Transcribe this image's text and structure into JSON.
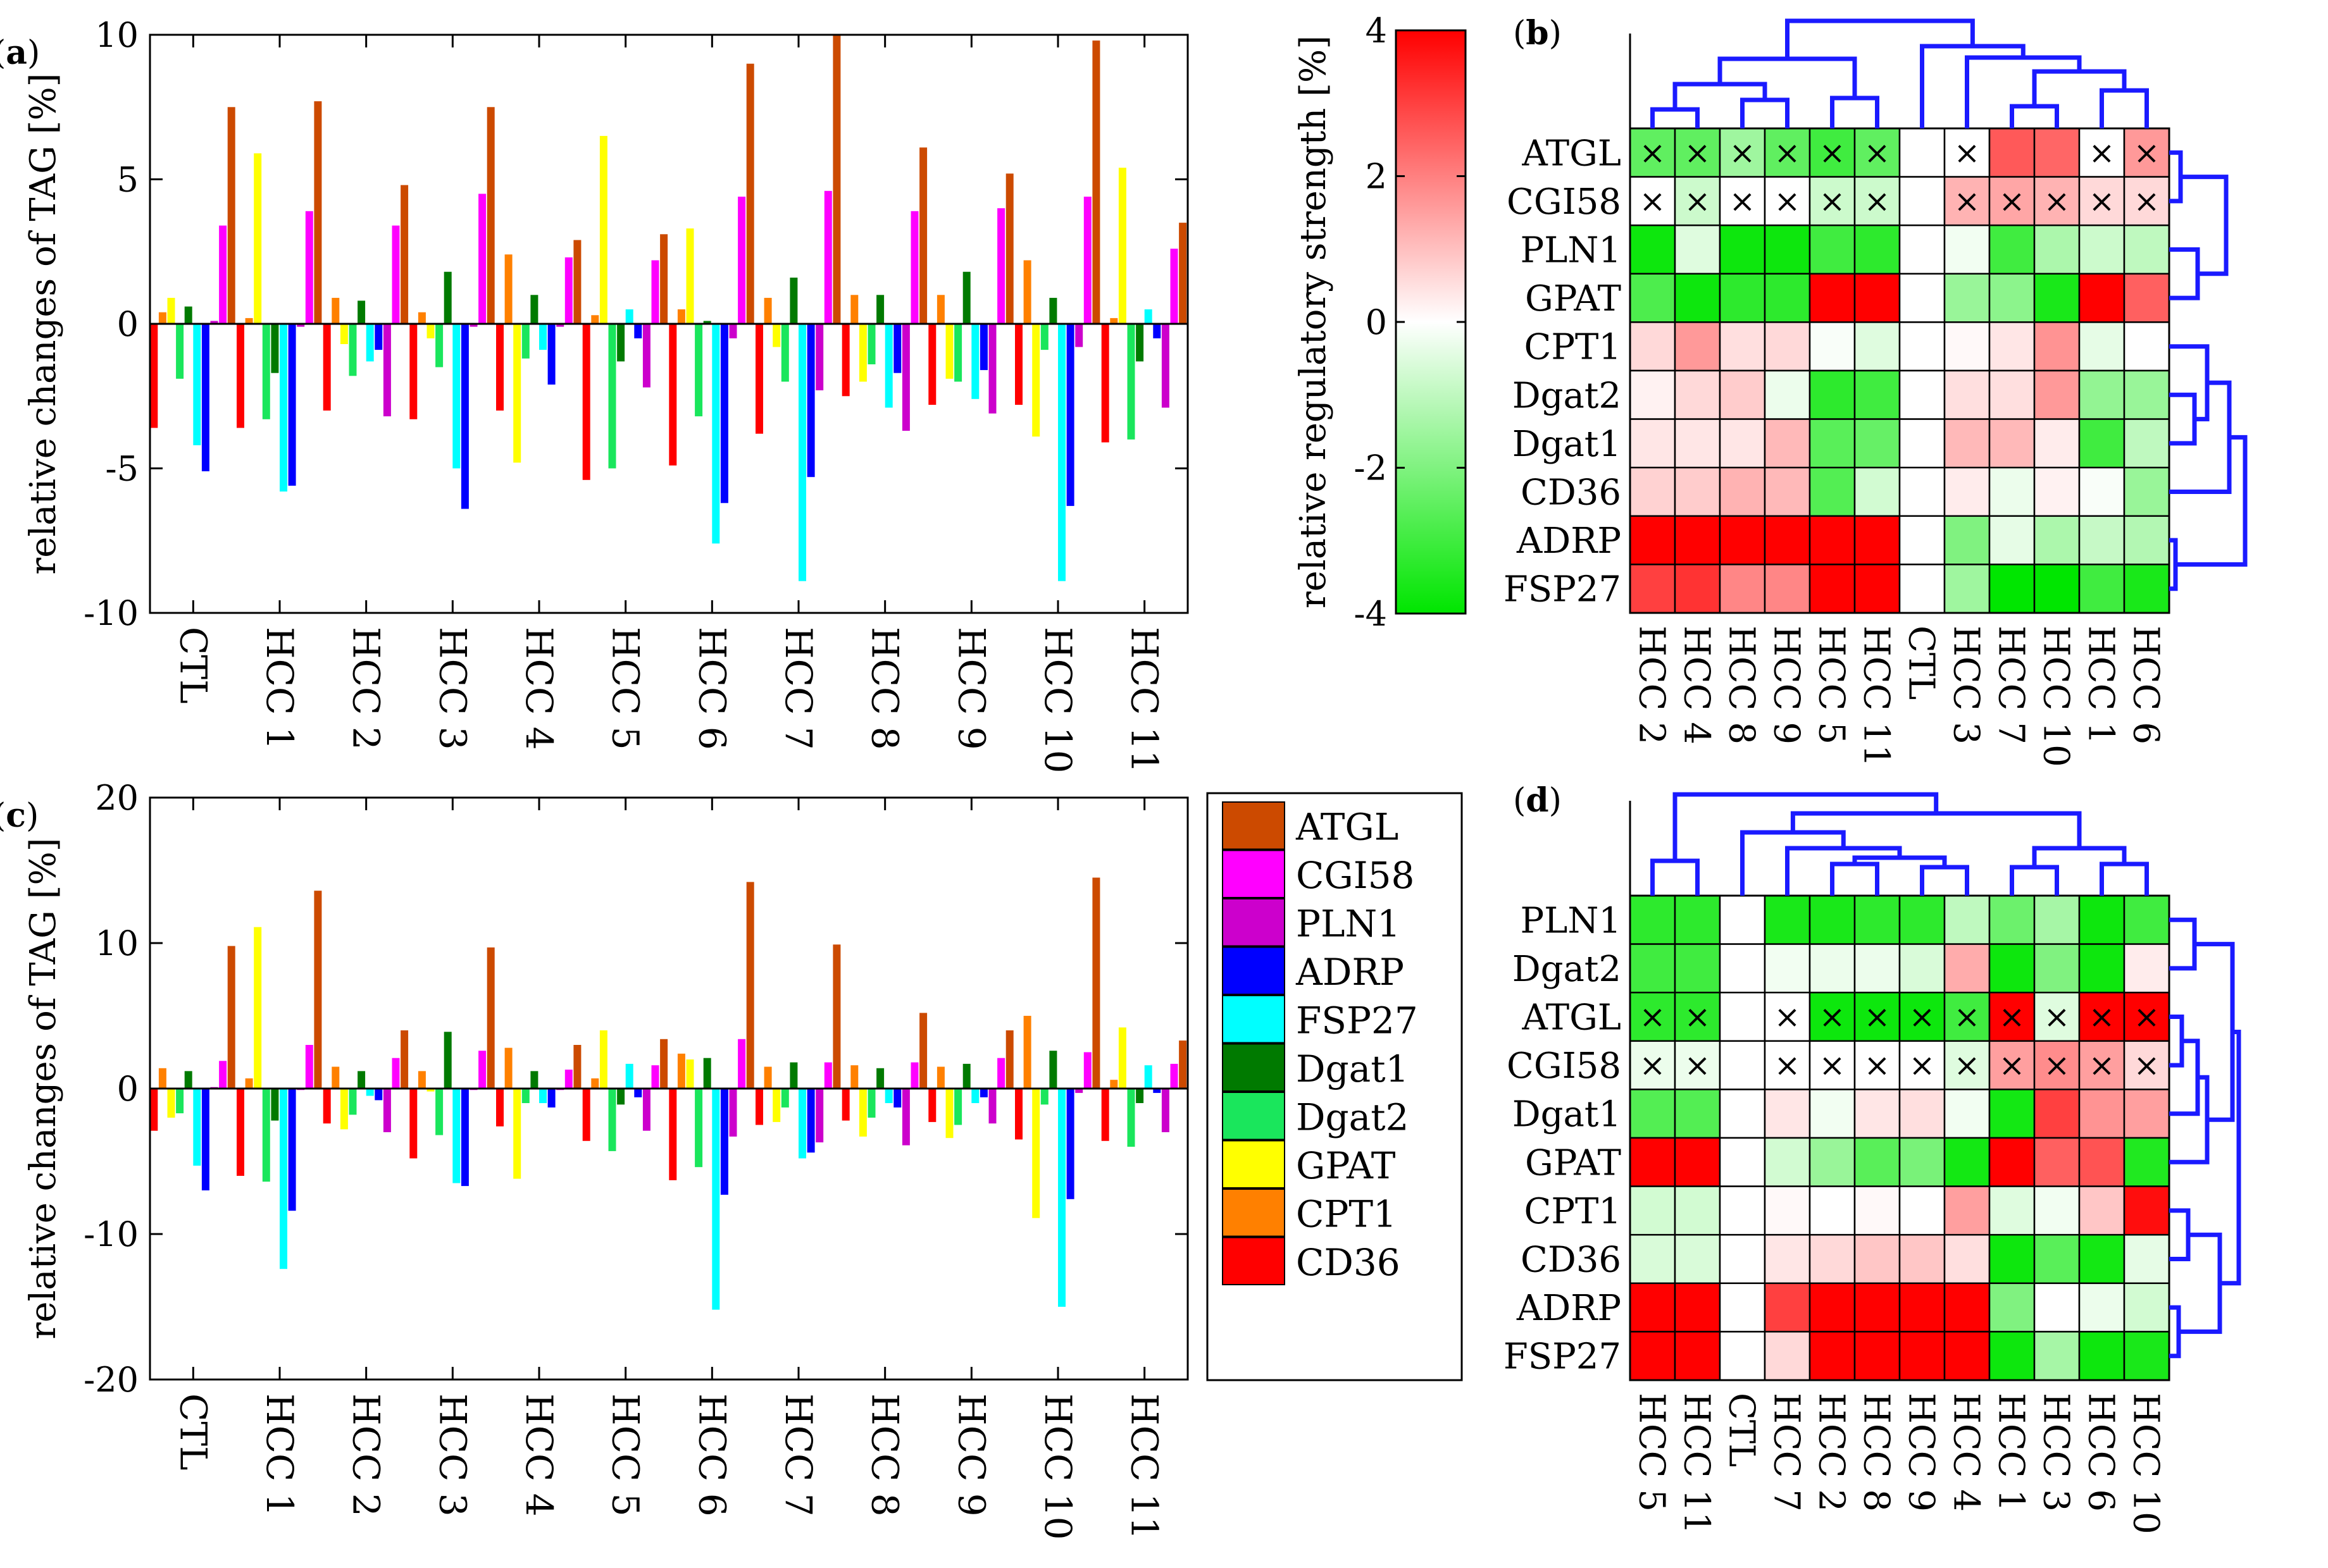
{
  "series_colors": {
    "CD36": "#ff0000",
    "CPT1": "#ff8000",
    "GPAT": "#ffff00",
    "Dgat2": "#1ae65c",
    "Dgat1": "#007a00",
    "FSP27": "#00ffff",
    "ADRP": "#0000ff",
    "PLN1": "#cc00cc",
    "CGI58": "#ff00ff",
    "ATGL": "#cc4a00"
  },
  "legend": {
    "items": [
      "ATGL",
      "CGI58",
      "PLN1",
      "ADRP",
      "FSP27",
      "Dgat1",
      "Dgat2",
      "GPAT",
      "CPT1",
      "CD36"
    ]
  },
  "colorbar": {
    "label": "relative regulatory strength [%]",
    "ticks": [
      "4",
      "2",
      "0",
      "-2",
      "-4"
    ],
    "range": [
      -4,
      4
    ]
  },
  "chart_data": [
    {
      "panel": "(a)",
      "type": "bar",
      "ylabel": "relative changes of TAG [%]",
      "ylim": [
        -10,
        10
      ],
      "yticks": [
        "10",
        "5",
        "0",
        "-5",
        "-10"
      ],
      "categories": [
        "CTL",
        "HCC 1",
        "HCC 2",
        "HCC 3",
        "HCC 4",
        "HCC 5",
        "HCC 6",
        "HCC 7",
        "HCC 8",
        "HCC 9",
        "HCC 10",
        "HCC 11"
      ],
      "series_order": [
        "CD36",
        "CPT1",
        "GPAT",
        "Dgat2",
        "Dgat1",
        "FSP27",
        "ADRP",
        "PLN1",
        "CGI58",
        "ATGL"
      ],
      "series": [
        {
          "name": "CD36",
          "values": [
            -3.6,
            -3.6,
            -3.0,
            -3.3,
            -3.0,
            -5.4,
            -4.9,
            -3.8,
            -2.5,
            -2.8,
            -2.8,
            -4.1
          ]
        },
        {
          "name": "CPT1",
          "values": [
            0.4,
            0.2,
            0.9,
            0.4,
            2.4,
            0.3,
            0.5,
            0.9,
            1.0,
            1.0,
            2.2,
            0.2
          ]
        },
        {
          "name": "GPAT",
          "values": [
            0.9,
            5.9,
            -0.7,
            -0.5,
            -4.8,
            6.5,
            3.3,
            -0.8,
            -2.0,
            -1.9,
            -3.9,
            5.4
          ]
        },
        {
          "name": "Dgat2",
          "values": [
            -1.9,
            -3.3,
            -1.8,
            -1.5,
            -1.2,
            -5.0,
            -3.2,
            -2.0,
            -1.4,
            -2.0,
            -0.9,
            -4.0
          ]
        },
        {
          "name": "Dgat1",
          "values": [
            0.6,
            -1.7,
            0.8,
            1.8,
            1.0,
            -1.3,
            0.1,
            1.6,
            1.0,
            1.8,
            0.9,
            -1.3
          ]
        },
        {
          "name": "FSP27",
          "values": [
            -4.2,
            -5.8,
            -1.3,
            -5.0,
            -0.9,
            0.5,
            -7.6,
            -8.9,
            -2.9,
            -2.6,
            -8.9,
            0.5
          ]
        },
        {
          "name": "ADRP",
          "values": [
            -5.1,
            -5.6,
            -0.9,
            -6.4,
            -2.1,
            -0.5,
            -6.2,
            -5.3,
            -1.7,
            -1.6,
            -6.3,
            -0.5
          ]
        },
        {
          "name": "PLN1",
          "values": [
            0.1,
            -0.1,
            -3.2,
            -0.1,
            -0.1,
            -2.2,
            -0.5,
            -2.3,
            -3.7,
            -3.1,
            -0.8,
            -2.9
          ]
        },
        {
          "name": "CGI58",
          "values": [
            3.4,
            3.9,
            3.4,
            4.5,
            2.3,
            2.2,
            4.4,
            4.6,
            3.9,
            4.0,
            4.4,
            2.6
          ]
        },
        {
          "name": "ATGL",
          "values": [
            7.5,
            7.7,
            4.8,
            7.5,
            2.9,
            3.1,
            9.0,
            10.0,
            6.1,
            5.2,
            9.8,
            3.5
          ]
        }
      ]
    },
    {
      "panel": "(b)",
      "type": "heatmap",
      "rows": [
        "ATGL",
        "CGI58",
        "PLN1",
        "GPAT",
        "CPT1",
        "Dgat2",
        "Dgat1",
        "CD36",
        "ADRP",
        "FSP27"
      ],
      "columns": [
        "HCC 2",
        "HCC 4",
        "HCC 8",
        "HCC 9",
        "HCC 5",
        "HCC 11",
        "CTL",
        "HCC 3",
        "HCC 7",
        "HCC 10",
        "HCC 1",
        "HCC 6"
      ],
      "zlim": [
        -4,
        4
      ],
      "values": [
        [
          -2.5,
          -2.5,
          -1.5,
          -2.5,
          -3.0,
          -2.5,
          0,
          0,
          2.6,
          2.4,
          0,
          1.6
        ],
        [
          0,
          -0.8,
          0,
          0,
          -0.8,
          -0.8,
          0,
          1.2,
          1.4,
          1.2,
          0.6,
          0.6
        ],
        [
          -3.8,
          -0.5,
          -3.8,
          -3.8,
          -3.0,
          -3.3,
          0,
          -0.2,
          -3.0,
          -1.3,
          -0.8,
          -1.0
        ],
        [
          -2.8,
          -3.8,
          -3.3,
          -3.3,
          4.0,
          4.0,
          0,
          -1.6,
          -1.8,
          -3.6,
          4.0,
          2.5
        ],
        [
          0.6,
          1.6,
          0.5,
          0.6,
          -0.1,
          -0.5,
          0,
          0.1,
          0.4,
          1.7,
          -0.4,
          0
        ],
        [
          0.2,
          0.6,
          0.8,
          -0.3,
          -3.3,
          -3.0,
          0,
          0.5,
          0.5,
          1.6,
          -1.7,
          -1.6
        ],
        [
          0.4,
          0.4,
          0.4,
          1.1,
          -2.6,
          -2.4,
          0,
          1.1,
          1.1,
          0.3,
          -3.0,
          -1.0
        ],
        [
          0.7,
          0.8,
          1.2,
          1.1,
          -2.7,
          -0.7,
          0,
          0.3,
          -0.3,
          0.2,
          -0.1,
          -1.6
        ],
        [
          4.0,
          4.0,
          4.0,
          4.0,
          4.0,
          4.0,
          0,
          -2.0,
          -0.4,
          -1.3,
          -0.9,
          -1.2
        ],
        [
          3.0,
          3.2,
          1.9,
          1.9,
          4.0,
          4.0,
          0,
          -1.5,
          -4.0,
          -4.0,
          -3.0,
          -3.6
        ]
      ],
      "crosses": [
        [
          1,
          1,
          1,
          1,
          1,
          1,
          0,
          1,
          0,
          0,
          1,
          1
        ],
        [
          1,
          1,
          1,
          1,
          1,
          1,
          0,
          1,
          1,
          1,
          1,
          1
        ],
        [
          0,
          0,
          0,
          0,
          0,
          0,
          0,
          0,
          0,
          0,
          0,
          0
        ],
        [
          0,
          0,
          0,
          0,
          0,
          0,
          0,
          0,
          0,
          0,
          0,
          0
        ],
        [
          0,
          0,
          0,
          0,
          0,
          0,
          0,
          0,
          0,
          0,
          0,
          0
        ],
        [
          0,
          0,
          0,
          0,
          0,
          0,
          0,
          0,
          0,
          0,
          0,
          0
        ],
        [
          0,
          0,
          0,
          0,
          0,
          0,
          0,
          0,
          0,
          0,
          0,
          0
        ],
        [
          0,
          0,
          0,
          0,
          0,
          0,
          0,
          0,
          0,
          0,
          0,
          0
        ],
        [
          0,
          0,
          0,
          0,
          0,
          0,
          0,
          0,
          0,
          0,
          0,
          0
        ],
        [
          0,
          0,
          0,
          0,
          0,
          0,
          0,
          0,
          0,
          0,
          0,
          0
        ]
      ],
      "cross_symbol": "×"
    },
    {
      "panel": "(c)",
      "type": "bar",
      "ylabel": "relative changes of TAG [%]",
      "ylim": [
        -20,
        20
      ],
      "yticks": [
        "20",
        "10",
        "0",
        "-10",
        "-20"
      ],
      "categories": [
        "CTL",
        "HCC 1",
        "HCC 2",
        "HCC 3",
        "HCC 4",
        "HCC 5",
        "HCC 6",
        "HCC 7",
        "HCC 8",
        "HCC 9",
        "HCC 10",
        "HCC 11"
      ],
      "series_order": [
        "CD36",
        "CPT1",
        "GPAT",
        "Dgat2",
        "Dgat1",
        "FSP27",
        "ADRP",
        "PLN1",
        "CGI58",
        "ATGL"
      ],
      "series": [
        {
          "name": "CD36",
          "values": [
            -2.9,
            -6.0,
            -2.4,
            -4.8,
            -2.6,
            -3.6,
            -6.3,
            -2.5,
            -2.2,
            -2.3,
            -3.5,
            -3.6
          ]
        },
        {
          "name": "CPT1",
          "values": [
            1.4,
            0.7,
            1.5,
            1.2,
            2.8,
            0.7,
            2.4,
            1.5,
            1.6,
            1.5,
            5.0,
            0.6
          ]
        },
        {
          "name": "GPAT",
          "values": [
            -2.0,
            11.1,
            -2.8,
            -0.2,
            -6.2,
            4.0,
            2.0,
            -2.3,
            -3.3,
            -3.4,
            -8.9,
            4.2
          ]
        },
        {
          "name": "Dgat2",
          "values": [
            -1.7,
            -6.4,
            -1.8,
            -3.2,
            -1.0,
            -4.3,
            -5.4,
            -1.3,
            -2.0,
            -2.5,
            -1.1,
            -4.0
          ]
        },
        {
          "name": "Dgat1",
          "values": [
            1.2,
            -2.2,
            1.2,
            3.9,
            1.2,
            -1.1,
            2.1,
            1.8,
            1.4,
            1.7,
            2.6,
            -1.0
          ]
        },
        {
          "name": "FSP27",
          "values": [
            -5.3,
            -12.4,
            -0.5,
            -6.5,
            -1.0,
            1.7,
            -15.2,
            -4.8,
            -1.0,
            -1.0,
            -15.0,
            1.6
          ]
        },
        {
          "name": "ADRP",
          "values": [
            -7.0,
            -8.4,
            -0.8,
            -6.7,
            -1.3,
            -0.6,
            -7.3,
            -4.4,
            -1.3,
            -0.6,
            -7.6,
            -0.3
          ]
        },
        {
          "name": "PLN1",
          "values": [
            0.1,
            -0.1,
            -3.0,
            -0.1,
            -0.1,
            -2.9,
            -3.3,
            -3.7,
            -3.9,
            -2.4,
            -0.3,
            -3.0
          ]
        },
        {
          "name": "CGI58",
          "values": [
            1.9,
            3.0,
            2.1,
            2.6,
            1.3,
            1.6,
            3.4,
            1.8,
            1.8,
            2.1,
            2.5,
            1.7
          ]
        },
        {
          "name": "ATGL",
          "values": [
            9.8,
            13.6,
            4.0,
            9.7,
            3.0,
            3.4,
            14.2,
            9.9,
            5.2,
            4.0,
            14.5,
            3.3
          ]
        }
      ]
    },
    {
      "panel": "(d)",
      "type": "heatmap",
      "rows": [
        "PLN1",
        "Dgat2",
        "ATGL",
        "CGI58",
        "Dgat1",
        "GPAT",
        "CPT1",
        "CD36",
        "ADRP",
        "FSP27"
      ],
      "columns": [
        "HCC 5",
        "HCC 11",
        "CTL",
        "HCC 7",
        "HCC 2",
        "HCC 8",
        "HCC 9",
        "HCC 4",
        "HCC 1",
        "HCC 3",
        "HCC 6",
        "HCC 10"
      ],
      "zlim": [
        -4,
        4
      ],
      "values": [
        [
          -3.3,
          -3.3,
          0,
          -3.6,
          -3.6,
          -3.3,
          -3.3,
          -1.0,
          -2.3,
          -1.4,
          -3.8,
          -3.0
        ],
        [
          -3.0,
          -3.0,
          0,
          -0.2,
          -0.3,
          -0.3,
          -0.6,
          1.3,
          -3.8,
          -2.0,
          -3.8,
          0.3
        ],
        [
          -3.3,
          -3.3,
          0,
          0,
          -3.8,
          -3.8,
          -3.8,
          -3.0,
          4.0,
          -0.5,
          4.0,
          4.0
        ],
        [
          -0.3,
          -0.3,
          0,
          0,
          0,
          0,
          0,
          -0.5,
          1.5,
          1.8,
          1.5,
          0.6
        ],
        [
          -2.7,
          -2.7,
          0,
          0.4,
          -0.2,
          0.4,
          0.5,
          -0.2,
          -3.7,
          3.0,
          1.7,
          1.5
        ],
        [
          4.0,
          4.0,
          0,
          -0.7,
          -1.6,
          -2.6,
          -2.1,
          -3.7,
          4.0,
          2.5,
          2.7,
          -3.5
        ],
        [
          -0.7,
          -0.7,
          0,
          0.1,
          0,
          0.1,
          0,
          1.5,
          -0.5,
          -0.2,
          0.9,
          3.8
        ],
        [
          -0.6,
          -0.6,
          0,
          0.4,
          0.6,
          0.9,
          0.9,
          0.5,
          -3.8,
          -2.6,
          -3.7,
          -0.4
        ],
        [
          4.0,
          4.0,
          0,
          3.0,
          4.0,
          4.0,
          4.0,
          4.0,
          -2.0,
          0,
          -0.3,
          -0.7
        ],
        [
          4.0,
          4.0,
          0,
          0.6,
          4.0,
          4.0,
          4.0,
          4.0,
          -3.8,
          -1.4,
          -3.8,
          -3.6
        ]
      ],
      "crosses": [
        [
          0,
          0,
          0,
          0,
          0,
          0,
          0,
          0,
          0,
          0,
          0,
          0
        ],
        [
          0,
          0,
          0,
          0,
          0,
          0,
          0,
          0,
          0,
          0,
          0,
          0
        ],
        [
          1,
          1,
          0,
          1,
          1,
          1,
          1,
          1,
          1,
          1,
          1,
          1
        ],
        [
          1,
          1,
          0,
          1,
          1,
          1,
          1,
          1,
          1,
          1,
          1,
          1
        ],
        [
          0,
          0,
          0,
          0,
          0,
          0,
          0,
          0,
          0,
          0,
          0,
          0
        ],
        [
          0,
          0,
          0,
          0,
          0,
          0,
          0,
          0,
          0,
          0,
          0,
          0
        ],
        [
          0,
          0,
          0,
          0,
          0,
          0,
          0,
          0,
          0,
          0,
          0,
          0
        ],
        [
          0,
          0,
          0,
          0,
          0,
          0,
          0,
          0,
          0,
          0,
          0,
          0
        ],
        [
          0,
          0,
          0,
          0,
          0,
          0,
          0,
          0,
          0,
          0,
          0,
          0
        ],
        [
          0,
          0,
          0,
          0,
          0,
          0,
          0,
          0,
          0,
          0,
          0,
          0
        ]
      ],
      "cross_symbol": "×"
    }
  ]
}
